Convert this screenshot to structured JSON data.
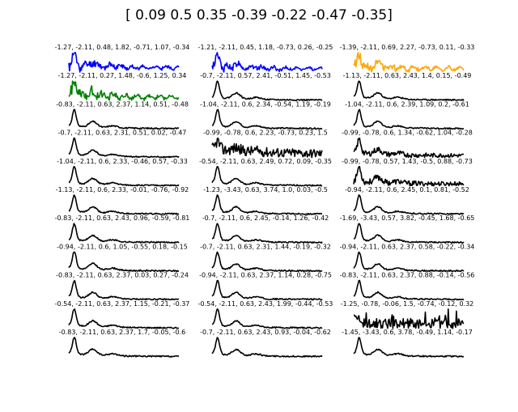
{
  "figure": {
    "suptitle": "[ 0.09  0.5   0.35 -0.39 -0.22 -0.47 -0.35]"
  },
  "chart_data": {
    "type": "line",
    "layout": "grid of 11 rows by 3 columns of small line plots, no axes, no ticks",
    "panels": [
      {
        "title": "-1.27, -2.11, 0.48, 1.82, -0.71, 1.07, -0.34",
        "color": "#0000ff",
        "shape": "noisy_early",
        "seed": 11
      },
      {
        "title": "-1.21, -2.11, 0.45, 1.18, -0.73, 0.26, -0.25",
        "color": "#0000ff",
        "shape": "noisy_early",
        "seed": 12
      },
      {
        "title": "-1.39, -2.11, 0.69, 2.27, -0.73, 0.11, -0.33",
        "color": "#ffa500",
        "shape": "noisy_early",
        "seed": 13
      },
      {
        "title": "-1.27, -2.11, 0.27, 1.48, -0.6, 1.25, 0.34",
        "color": "#008000",
        "shape": "noisy_early",
        "seed": 21
      },
      {
        "title": "-0.7, -2.11, 0.57, 2.41, -0.51, 1.45, -0.53",
        "color": "#000000",
        "shape": "standard",
        "seed": 22
      },
      {
        "title": "-1.13, -2.11, 0.63, 2.43, 1.4, 0.15, -0.49",
        "color": "#000000",
        "shape": "standard",
        "seed": 23
      },
      {
        "title": "-0.83, -2.11, 0.63, 2.37, 1.14, 0.51, -0.48",
        "color": "#000000",
        "shape": "standard",
        "seed": 31
      },
      {
        "title": "-1.04, -2.11, 0.6, 2.34, -0.54, 1.19, -0.19",
        "color": "#000000",
        "shape": "standard",
        "seed": 32
      },
      {
        "title": "-1.04, -2.11, 0.6, 2.39, 1.09, 0.2, -0.61",
        "color": "#000000",
        "shape": "standard",
        "seed": 33
      },
      {
        "title": "-0.7, -2.11, 0.63, 2.31, 0.51, 0.02, -0.47",
        "color": "#000000",
        "shape": "standard",
        "seed": 41
      },
      {
        "title": "-0.99, -0.78, 0.6, 2.23, -0.73, 0.23, 1.5",
        "color": "#000000",
        "shape": "very_noisy",
        "seed": 42
      },
      {
        "title": "-0.99, -0.78, 0.6, 1.34, -0.62, 1.04, -0.28",
        "color": "#000000",
        "shape": "noisy",
        "seed": 43
      },
      {
        "title": "-1.04, -2.11, 0.6, 2.33, -0.46, 0.57, -0.33",
        "color": "#000000",
        "shape": "standard",
        "seed": 51
      },
      {
        "title": "-0.54, -2.11, 0.63, 2.49, 0.72, 0.09, -0.35",
        "color": "#000000",
        "shape": "standard",
        "seed": 52
      },
      {
        "title": "-0.99, -0.78, 0.57, 1.43, -0.5, 0.88, -0.73",
        "color": "#000000",
        "shape": "noisy",
        "seed": 53
      },
      {
        "title": "-1.13, -2.11, 0.6, 2.33, -0.01, -0.76, -0.92",
        "color": "#000000",
        "shape": "standard",
        "seed": 61
      },
      {
        "title": "-1.23, -3.43, 0.63, 3.74, 1.0, 0.03, -0.5",
        "color": "#000000",
        "shape": "standard",
        "seed": 62
      },
      {
        "title": "-0.94, -2.11, 0.6, 2.45, 0.1, 0.81, -0.52",
        "color": "#000000",
        "shape": "standard",
        "seed": 63
      },
      {
        "title": "-0.83, -2.11, 0.63, 2.43, 0.96, -0.59, -0.81",
        "color": "#000000",
        "shape": "standard",
        "seed": 71
      },
      {
        "title": "-0.7, -2.11, 0.6, 2.45, -0.14, 1.26, -0.42",
        "color": "#000000",
        "shape": "standard",
        "seed": 72
      },
      {
        "title": "-1.69, -3.43, 0.57, 3.82, -0.45, 1.68, -0.65",
        "color": "#000000",
        "shape": "standard",
        "seed": 73
      },
      {
        "title": "-0.94, -2.11, 0.6, 1.05, -0.55, 0.18, -0.15",
        "color": "#000000",
        "shape": "standard",
        "seed": 81
      },
      {
        "title": "-0.7, -2.11, 0.63, 2.31, 1.44, -0.19, -0.32",
        "color": "#000000",
        "shape": "standard",
        "seed": 82
      },
      {
        "title": "-0.94, -2.11, 0.63, 2.37, 0.58, -0.22, -0.34",
        "color": "#000000",
        "shape": "standard",
        "seed": 83
      },
      {
        "title": "-0.83, -2.11, 0.63, 2.37, 0.03, 0.27, -0.24",
        "color": "#000000",
        "shape": "standard",
        "seed": 91
      },
      {
        "title": "-0.94, -2.11, 0.63, 2.37, 1.14, 0.28, -0.75",
        "color": "#000000",
        "shape": "standard",
        "seed": 92
      },
      {
        "title": "-0.83, -2.11, 0.63, 2.37, 0.88, -0.14, -0.56",
        "color": "#000000",
        "shape": "standard",
        "seed": 93
      },
      {
        "title": "-0.54, -2.11, 0.63, 2.37, 1.15, -0.21, -0.37",
        "color": "#000000",
        "shape": "standard",
        "seed": 101
      },
      {
        "title": "-0.54, -2.11, 0.63, 2.43, 1.99, -0.44, -0.53",
        "color": "#000000",
        "shape": "standard",
        "seed": 102
      },
      {
        "title": "-1.25, -0.78, -0.06, 1.5, -0.74, -0.12, 0.32",
        "color": "#000000",
        "shape": "spiky",
        "seed": 103
      },
      {
        "title": "-0.83, -2.11, 0.63, 2.37, 1.7, -0.05, -0.6",
        "color": "#000000",
        "shape": "standard",
        "seed": 111
      },
      {
        "title": "-0.7, -2.11, 0.63, 2.43, 0.93, -0.04, -0.62",
        "color": "#000000",
        "shape": "standard",
        "seed": 112
      },
      {
        "title": "-1.45, -3.43, 0.6, 3.78, -0.49, 1.14, -0.17",
        "color": "#000000",
        "shape": "standard",
        "seed": 113
      }
    ]
  }
}
